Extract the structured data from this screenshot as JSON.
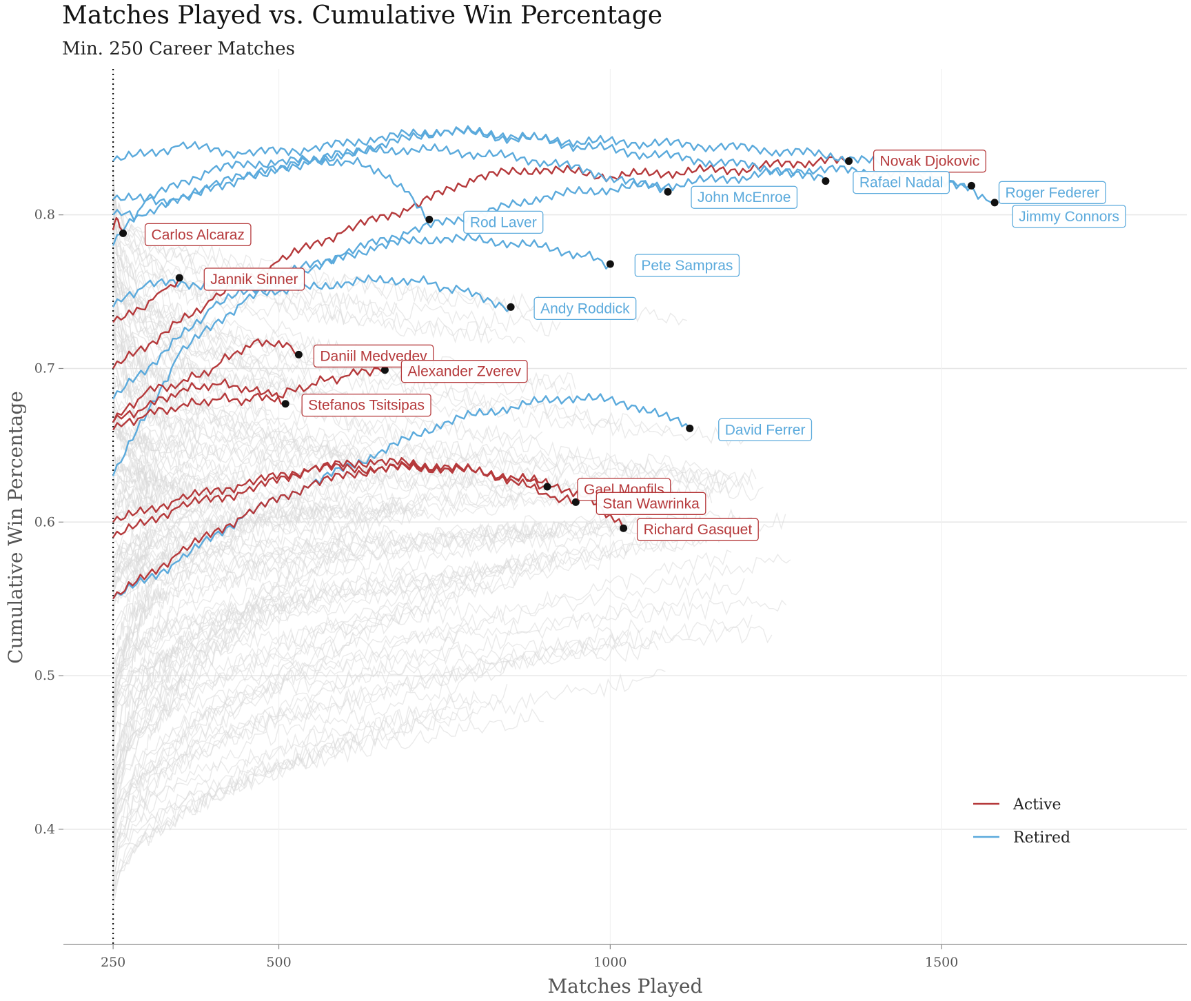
{
  "chart_data": {
    "type": "line",
    "title": "Matches Played vs. Cumulative Win Percentage",
    "subtitle": "Min. 250 Career Matches",
    "xlabel": "Matches Played",
    "ylabel": "Cumulative Win Percentage",
    "xlim": [
      175,
      1870
    ],
    "ylim": [
      0.325,
      0.895
    ],
    "xticks": [
      250,
      500,
      1000,
      1500
    ],
    "yticks": [
      0.4,
      0.5,
      0.6,
      0.7,
      0.8
    ],
    "reference_line": {
      "x": 250,
      "style": "dotted"
    },
    "grid": true,
    "legend": {
      "placement": "bottom-right",
      "entries": [
        {
          "name": "Active",
          "color": "#B5393B"
        },
        {
          "name": "Retired",
          "color": "#5BAADC"
        }
      ]
    },
    "colors": {
      "active": "#B5393B",
      "retired": "#5BAADC",
      "background_lines": "#D9D9D9",
      "points": "#111111"
    },
    "series": [
      {
        "name": "Novak Djokovic",
        "status": "active",
        "x": [
          250,
          400,
          500,
          600,
          700,
          800,
          900,
          1000,
          1100,
          1200,
          1300,
          1360
        ],
        "y": [
          0.7,
          0.745,
          0.77,
          0.79,
          0.805,
          0.825,
          0.83,
          0.825,
          0.828,
          0.83,
          0.835,
          0.835
        ]
      },
      {
        "name": "Rafael Nadal",
        "status": "retired",
        "x": [
          250,
          350,
          450,
          550,
          650,
          750,
          850,
          950,
          1050,
          1150,
          1250,
          1325
        ],
        "y": [
          0.81,
          0.81,
          0.825,
          0.835,
          0.845,
          0.855,
          0.852,
          0.845,
          0.84,
          0.835,
          0.83,
          0.822
        ]
      },
      {
        "name": "Roger Federer",
        "status": "retired",
        "x": [
          250,
          400,
          500,
          600,
          700,
          800,
          900,
          1000,
          1100,
          1200,
          1300,
          1400,
          1500,
          1545
        ],
        "y": [
          0.68,
          0.74,
          0.76,
          0.775,
          0.79,
          0.8,
          0.812,
          0.817,
          0.82,
          0.825,
          0.83,
          0.828,
          0.823,
          0.819
        ]
      },
      {
        "name": "Jimmy Connors",
        "status": "retired",
        "x": [
          250,
          350,
          450,
          550,
          650,
          750,
          850,
          950,
          1050,
          1150,
          1250,
          1350,
          1450,
          1530,
          1580
        ],
        "y": [
          0.835,
          0.845,
          0.84,
          0.843,
          0.85,
          0.855,
          0.85,
          0.848,
          0.847,
          0.845,
          0.842,
          0.838,
          0.83,
          0.82,
          0.808
        ]
      },
      {
        "name": "John McEnroe",
        "status": "retired",
        "x": [
          250,
          300,
          400,
          500,
          600,
          700,
          800,
          900,
          1000,
          1087
        ],
        "y": [
          0.8,
          0.8,
          0.82,
          0.83,
          0.84,
          0.843,
          0.84,
          0.835,
          0.825,
          0.815
        ]
      },
      {
        "name": "Rod Laver",
        "status": "retired",
        "x": [
          250,
          300,
          400,
          500,
          600,
          650,
          690,
          727
        ],
        "y": [
          0.78,
          0.81,
          0.83,
          0.835,
          0.835,
          0.83,
          0.815,
          0.797
        ]
      },
      {
        "name": "Pete Sampras",
        "status": "retired",
        "x": [
          250,
          350,
          450,
          550,
          650,
          750,
          850,
          950,
          1000
        ],
        "y": [
          0.63,
          0.71,
          0.745,
          0.765,
          0.78,
          0.785,
          0.782,
          0.775,
          0.768
        ]
      },
      {
        "name": "Andy Roddick",
        "status": "retired",
        "x": [
          250,
          300,
          400,
          500,
          600,
          700,
          780,
          850
        ],
        "y": [
          0.74,
          0.755,
          0.755,
          0.75,
          0.756,
          0.758,
          0.75,
          0.74
        ]
      },
      {
        "name": "David Ferrer",
        "status": "retired",
        "x": [
          250,
          350,
          450,
          550,
          650,
          750,
          850,
          950,
          1050,
          1120
        ],
        "y": [
          0.55,
          0.575,
          0.605,
          0.625,
          0.645,
          0.665,
          0.675,
          0.682,
          0.675,
          0.661
        ]
      },
      {
        "name": "Carlos Alcaraz",
        "status": "active",
        "x": [
          250,
          255,
          260,
          265
        ],
        "y": [
          0.79,
          0.798,
          0.792,
          0.788
        ]
      },
      {
        "name": "Jannik Sinner",
        "status": "active",
        "x": [
          250,
          280,
          310,
          330,
          350
        ],
        "y": [
          0.73,
          0.735,
          0.745,
          0.752,
          0.759
        ]
      },
      {
        "name": "Daniil Medvedev",
        "status": "active",
        "x": [
          250,
          300,
          350,
          400,
          450,
          500,
          530
        ],
        "y": [
          0.665,
          0.685,
          0.69,
          0.7,
          0.715,
          0.718,
          0.709
        ]
      },
      {
        "name": "Alexander Zverev",
        "status": "active",
        "x": [
          250,
          300,
          350,
          400,
          450,
          500,
          550,
          600,
          650,
          660
        ],
        "y": [
          0.66,
          0.67,
          0.675,
          0.68,
          0.68,
          0.682,
          0.69,
          0.695,
          0.7,
          0.699
        ]
      },
      {
        "name": "Stefanos Tsitsipas",
        "status": "active",
        "x": [
          250,
          300,
          350,
          400,
          450,
          490,
          510
        ],
        "y": [
          0.665,
          0.675,
          0.685,
          0.69,
          0.688,
          0.682,
          0.677
        ]
      },
      {
        "name": "Gael Monfils",
        "status": "active",
        "x": [
          250,
          350,
          450,
          550,
          650,
          750,
          850,
          905
        ],
        "y": [
          0.6,
          0.615,
          0.625,
          0.635,
          0.635,
          0.635,
          0.63,
          0.623
        ]
      },
      {
        "name": "Stan Wawrinka",
        "status": "active",
        "x": [
          250,
          350,
          450,
          550,
          650,
          750,
          850,
          910,
          948
        ],
        "y": [
          0.55,
          0.58,
          0.605,
          0.625,
          0.635,
          0.637,
          0.628,
          0.616,
          0.613
        ]
      },
      {
        "name": "Richard Gasquet",
        "status": "active",
        "x": [
          250,
          350,
          450,
          550,
          650,
          750,
          850,
          950,
          1000,
          1020
        ],
        "y": [
          0.59,
          0.61,
          0.62,
          0.635,
          0.64,
          0.635,
          0.63,
          0.62,
          0.605,
          0.596
        ]
      }
    ]
  }
}
